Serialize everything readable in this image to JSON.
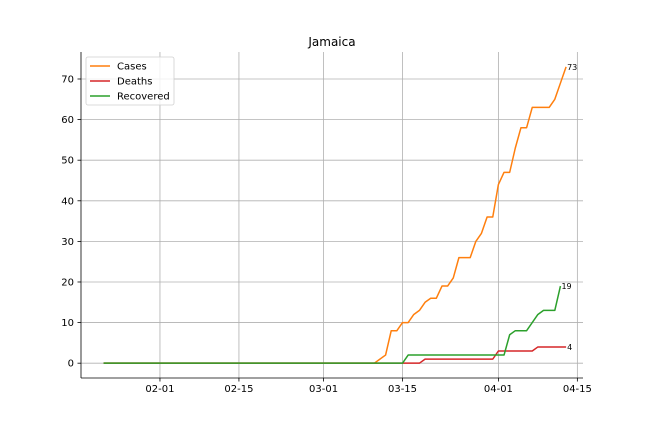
{
  "chart_data": {
    "type": "line",
    "title": "Jamaica",
    "xlabel": "",
    "ylabel": "",
    "grid": true,
    "legend": "top-left",
    "x_start": "2020-01-22",
    "x_end": "2020-04-13",
    "xlim": [
      "2020-01-18",
      "2020-04-16"
    ],
    "ylim": [
      -3.65,
      76.65
    ],
    "x_ticks": [
      "02-01",
      "02-15",
      "03-01",
      "03-15",
      "04-01",
      "04-15"
    ],
    "x_tick_dates": [
      "2020-02-01",
      "2020-02-15",
      "2020-03-01",
      "2020-03-15",
      "2020-04-01",
      "2020-04-15"
    ],
    "y_ticks": [
      0,
      10,
      20,
      30,
      40,
      50,
      60,
      70
    ],
    "series": [
      {
        "name": "Cases",
        "color": "#ff7f0e",
        "end_label": "73",
        "points": [
          [
            "2020-01-22",
            0
          ],
          [
            "2020-03-10",
            0
          ],
          [
            "2020-03-11",
            1
          ],
          [
            "2020-03-12",
            2
          ],
          [
            "2020-03-13",
            8
          ],
          [
            "2020-03-14",
            8
          ],
          [
            "2020-03-15",
            10
          ],
          [
            "2020-03-16",
            10
          ],
          [
            "2020-03-17",
            12
          ],
          [
            "2020-03-18",
            13
          ],
          [
            "2020-03-19",
            15
          ],
          [
            "2020-03-20",
            16
          ],
          [
            "2020-03-21",
            16
          ],
          [
            "2020-03-22",
            19
          ],
          [
            "2020-03-23",
            19
          ],
          [
            "2020-03-24",
            21
          ],
          [
            "2020-03-25",
            26
          ],
          [
            "2020-03-26",
            26
          ],
          [
            "2020-03-27",
            26
          ],
          [
            "2020-03-28",
            30
          ],
          [
            "2020-03-29",
            32
          ],
          [
            "2020-03-30",
            36
          ],
          [
            "2020-03-31",
            36
          ],
          [
            "2020-04-01",
            44
          ],
          [
            "2020-04-02",
            47
          ],
          [
            "2020-04-03",
            47
          ],
          [
            "2020-04-04",
            53
          ],
          [
            "2020-04-05",
            58
          ],
          [
            "2020-04-06",
            58
          ],
          [
            "2020-04-07",
            63
          ],
          [
            "2020-04-08",
            63
          ],
          [
            "2020-04-09",
            63
          ],
          [
            "2020-04-10",
            63
          ],
          [
            "2020-04-11",
            65
          ],
          [
            "2020-04-12",
            69
          ],
          [
            "2020-04-13",
            73
          ]
        ]
      },
      {
        "name": "Deaths",
        "color": "#d62728",
        "end_label": "4",
        "points": [
          [
            "2020-01-22",
            0
          ],
          [
            "2020-03-18",
            0
          ],
          [
            "2020-03-19",
            1
          ],
          [
            "2020-03-31",
            1
          ],
          [
            "2020-04-01",
            3
          ],
          [
            "2020-04-07",
            3
          ],
          [
            "2020-04-08",
            4
          ],
          [
            "2020-04-13",
            4
          ]
        ]
      },
      {
        "name": "Recovered",
        "color": "#2ca02c",
        "end_label": "19",
        "points": [
          [
            "2020-01-22",
            0
          ],
          [
            "2020-03-15",
            0
          ],
          [
            "2020-03-16",
            2
          ],
          [
            "2020-03-31",
            2
          ],
          [
            "2020-04-01",
            2
          ],
          [
            "2020-04-02",
            2
          ],
          [
            "2020-04-03",
            7
          ],
          [
            "2020-04-04",
            8
          ],
          [
            "2020-04-05",
            8
          ],
          [
            "2020-04-06",
            8
          ],
          [
            "2020-04-07",
            10
          ],
          [
            "2020-04-08",
            12
          ],
          [
            "2020-04-09",
            13
          ],
          [
            "2020-04-10",
            13
          ],
          [
            "2020-04-11",
            13
          ],
          [
            "2020-04-12",
            19
          ]
        ]
      }
    ]
  }
}
